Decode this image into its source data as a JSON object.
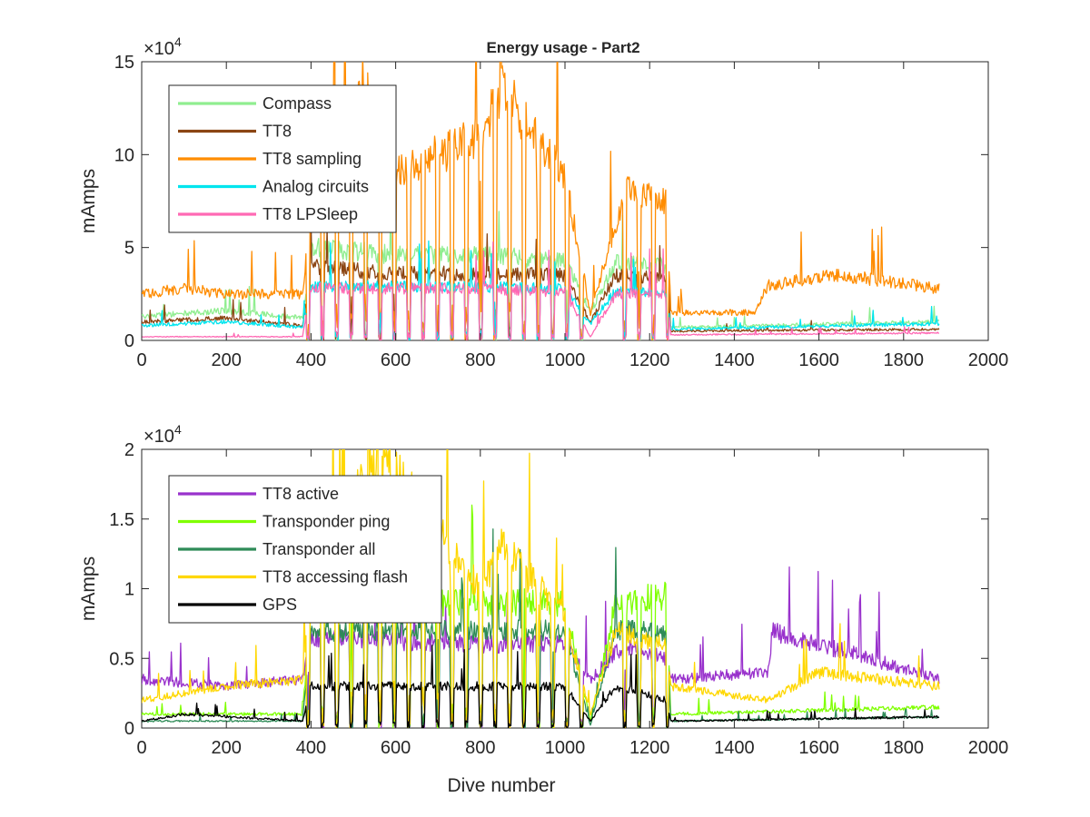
{
  "figure": {
    "title": "Energy usage - Part2",
    "background": "#ffffff"
  },
  "chart_data": [
    {
      "type": "line",
      "title": "Energy usage - Part2",
      "xlabel": "",
      "ylabel": "mAmps",
      "exponent_label": "×10",
      "exponent_power": "4",
      "xlim": [
        0,
        2000
      ],
      "ylim": [
        0,
        15
      ],
      "xticks": [
        0,
        200,
        400,
        600,
        800,
        1000,
        1200,
        1400,
        1600,
        1800,
        2000
      ],
      "yticks": [
        0,
        5,
        10,
        15
      ],
      "grid": false,
      "legend_position": "top-left",
      "x_max_data": 1885,
      "series": [
        {
          "name": "Compass",
          "color": "#90ee90",
          "approx_profile": [
            [
              0,
              1.3
            ],
            [
              200,
              1.6
            ],
            [
              380,
              1.2
            ],
            [
              400,
              5.0
            ],
            [
              600,
              4.6
            ],
            [
              800,
              4.6
            ],
            [
              1000,
              4.3
            ],
            [
              1060,
              1.5
            ],
            [
              1120,
              4.2
            ],
            [
              1240,
              4.0
            ],
            [
              1250,
              0.7
            ],
            [
              1885,
              1.0
            ]
          ]
        },
        {
          "name": "TT8",
          "color": "#8b4513",
          "approx_profile": [
            [
              0,
              1.0
            ],
            [
              200,
              1.2
            ],
            [
              380,
              0.8
            ],
            [
              400,
              4.0
            ],
            [
              600,
              3.6
            ],
            [
              800,
              3.6
            ],
            [
              1000,
              3.5
            ],
            [
              1060,
              1.0
            ],
            [
              1120,
              3.5
            ],
            [
              1240,
              3.4
            ],
            [
              1250,
              0.5
            ],
            [
              1885,
              0.6
            ]
          ]
        },
        {
          "name": "TT8 sampling",
          "color": "#ff8c00",
          "approx_profile": [
            [
              0,
              2.5
            ],
            [
              100,
              2.8
            ],
            [
              200,
              2.5
            ],
            [
              380,
              2.5
            ],
            [
              400,
              7.0
            ],
            [
              520,
              14.0
            ],
            [
              600,
              9.0
            ],
            [
              800,
              11.0
            ],
            [
              850,
              13.6
            ],
            [
              1000,
              9.0
            ],
            [
              1060,
              1.5
            ],
            [
              1140,
              8.0
            ],
            [
              1240,
              7.5
            ],
            [
              1250,
              1.5
            ],
            [
              1450,
              1.5
            ],
            [
              1480,
              3.0
            ],
            [
              1650,
              3.5
            ],
            [
              1885,
              2.8
            ]
          ]
        },
        {
          "name": "Analog circuits",
          "color": "#00e5ee",
          "approx_profile": [
            [
              0,
              0.8
            ],
            [
              200,
              1.0
            ],
            [
              380,
              0.7
            ],
            [
              400,
              2.9
            ],
            [
              800,
              2.9
            ],
            [
              1000,
              2.8
            ],
            [
              1060,
              0.9
            ],
            [
              1120,
              2.7
            ],
            [
              1240,
              2.6
            ],
            [
              1250,
              0.6
            ],
            [
              1885,
              0.9
            ]
          ]
        },
        {
          "name": "TT8 LPSleep",
          "color": "#ff69b4",
          "approx_profile": [
            [
              0,
              0.2
            ],
            [
              380,
              0.2
            ],
            [
              400,
              2.8
            ],
            [
              800,
              2.8
            ],
            [
              1000,
              2.6
            ],
            [
              1060,
              0.2
            ],
            [
              1120,
              2.5
            ],
            [
              1240,
              2.5
            ],
            [
              1250,
              0.3
            ],
            [
              1885,
              0.4
            ]
          ]
        }
      ]
    },
    {
      "type": "line",
      "title": "",
      "xlabel": "Dive number",
      "ylabel": "mAmps",
      "exponent_label": "×10",
      "exponent_power": "4",
      "xlim": [
        0,
        2000
      ],
      "ylim": [
        0,
        2
      ],
      "xticks": [
        0,
        200,
        400,
        600,
        800,
        1000,
        1200,
        1400,
        1600,
        1800,
        2000
      ],
      "yticks": [
        0,
        0.5,
        1,
        1.5,
        2
      ],
      "grid": false,
      "legend_position": "top-left",
      "x_max_data": 1885,
      "series": [
        {
          "name": "TT8 active",
          "color": "#9932cc",
          "approx_profile": [
            [
              0,
              0.35
            ],
            [
              200,
              0.3
            ],
            [
              380,
              0.35
            ],
            [
              400,
              0.65
            ],
            [
              800,
              0.6
            ],
            [
              1000,
              0.6
            ],
            [
              1060,
              0.35
            ],
            [
              1140,
              0.6
            ],
            [
              1240,
              0.5
            ],
            [
              1250,
              0.35
            ],
            [
              1480,
              0.4
            ],
            [
              1490,
              0.7
            ],
            [
              1885,
              0.35
            ]
          ]
        },
        {
          "name": "Transponder ping",
          "color": "#7fff00",
          "approx_profile": [
            [
              0,
              0.1
            ],
            [
              380,
              0.1
            ],
            [
              400,
              0.9
            ],
            [
              800,
              0.9
            ],
            [
              1000,
              0.9
            ],
            [
              1060,
              0.05
            ],
            [
              1120,
              0.9
            ],
            [
              1240,
              0.95
            ],
            [
              1250,
              0.1
            ],
            [
              1885,
              0.15
            ]
          ]
        },
        {
          "name": "Transponder all",
          "color": "#2e8b57",
          "approx_profile": [
            [
              0,
              0.05
            ],
            [
              380,
              0.05
            ],
            [
              400,
              0.7
            ],
            [
              800,
              0.7
            ],
            [
              1000,
              0.7
            ],
            [
              1060,
              0.02
            ],
            [
              1120,
              0.7
            ],
            [
              1240,
              0.7
            ],
            [
              1250,
              0.05
            ],
            [
              1885,
              0.08
            ]
          ]
        },
        {
          "name": "TT8 accessing flash",
          "color": "#ffd700",
          "approx_profile": [
            [
              0,
              0.2
            ],
            [
              200,
              0.3
            ],
            [
              380,
              0.35
            ],
            [
              400,
              1.0
            ],
            [
              560,
              2.0
            ],
            [
              800,
              1.0
            ],
            [
              850,
              1.3
            ],
            [
              1000,
              0.8
            ],
            [
              1060,
              0.1
            ],
            [
              1120,
              0.7
            ],
            [
              1240,
              0.6
            ],
            [
              1250,
              0.3
            ],
            [
              1480,
              0.2
            ],
            [
              1600,
              0.4
            ],
            [
              1885,
              0.3
            ]
          ]
        },
        {
          "name": "GPS",
          "color": "#000000",
          "approx_profile": [
            [
              0,
              0.05
            ],
            [
              100,
              0.1
            ],
            [
              380,
              0.05
            ],
            [
              400,
              0.3
            ],
            [
              800,
              0.3
            ],
            [
              1000,
              0.3
            ],
            [
              1060,
              0.05
            ],
            [
              1120,
              0.3
            ],
            [
              1240,
              0.2
            ],
            [
              1250,
              0.05
            ],
            [
              1885,
              0.08
            ]
          ]
        }
      ]
    }
  ]
}
